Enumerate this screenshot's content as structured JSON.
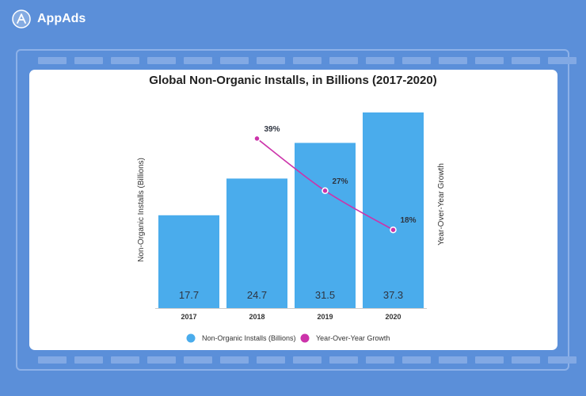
{
  "brand": {
    "name": "AppAds"
  },
  "colors": {
    "background": "#5b8fd9",
    "bar": "#4aacec",
    "line": "#cc33aa",
    "card": "#ffffff"
  },
  "chart_data": {
    "type": "bar",
    "title": "Global Non-Organic Installs, in Billions (2017-2020)",
    "categories": [
      "2017",
      "2018",
      "2019",
      "2020"
    ],
    "series": [
      {
        "name": "Non-Organic Installs (Billions)",
        "type": "bar",
        "axis": "left",
        "values": [
          17.7,
          24.7,
          31.5,
          37.3
        ]
      },
      {
        "name": "Year-Over-Year Growth",
        "type": "line",
        "axis": "right",
        "values": [
          null,
          39,
          27,
          18
        ],
        "labels": [
          "",
          "39%",
          "27%",
          "18%"
        ]
      }
    ],
    "ylabel": "Non-Organic Installs (Billions)",
    "y2label": "Year-Over-Year Growth",
    "ylim": [
      0,
      37.3
    ],
    "y2lim": [
      0,
      45
    ],
    "legend": "bottom-center",
    "grid": false
  }
}
